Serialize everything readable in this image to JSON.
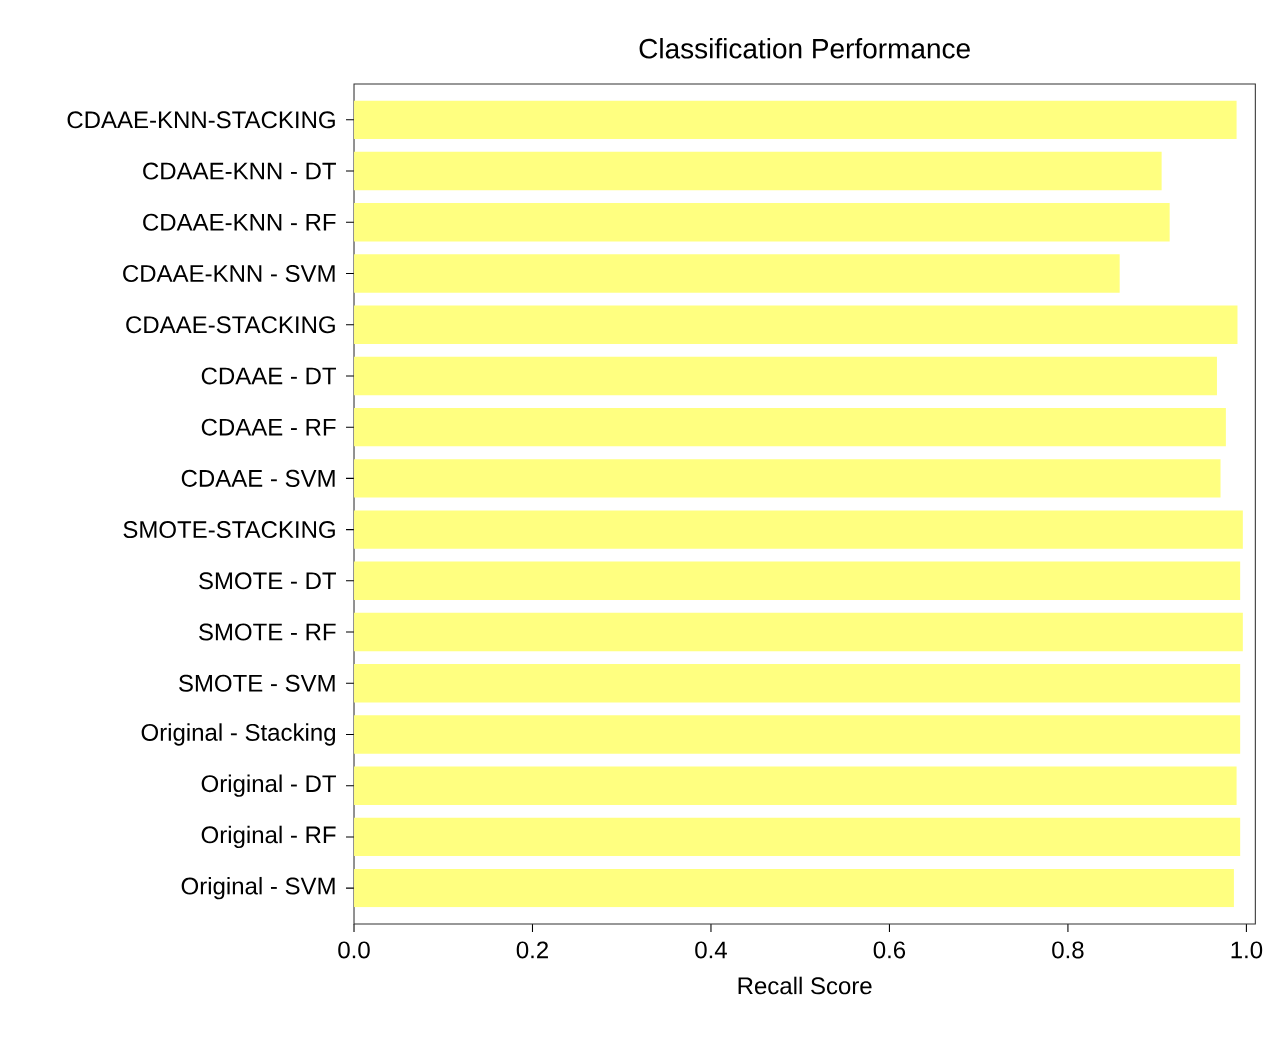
{
  "chart_data": {
    "type": "bar",
    "orientation": "horizontal",
    "title": "Classification Performance",
    "xlabel": "Recall Score",
    "categories": [
      "CDAAE-KNN-STACKING",
      "CDAAE-KNN - DT",
      "CDAAE-KNN - RF",
      "CDAAE-KNN - SVM",
      "CDAAE-STACKING",
      "CDAAE - DT",
      "CDAAE - RF",
      "CDAAE - SVM",
      "SMOTE-STACKING",
      "SMOTE - DT",
      "SMOTE - RF",
      "SMOTE - SVM",
      "Original - Stacking",
      "Original - DT",
      "Original - RF",
      "Original - SVM"
    ],
    "values": [
      0.989,
      0.905,
      0.914,
      0.858,
      0.99,
      0.967,
      0.977,
      0.971,
      0.996,
      0.993,
      0.996,
      0.993,
      0.993,
      0.989,
      0.993,
      0.986
    ],
    "color": "#ffff80",
    "xlim": [
      0,
      1.01
    ],
    "xticks": [
      {
        "value": 0,
        "label": "0.0"
      },
      {
        "value": 0.2,
        "label": "0.2"
      },
      {
        "value": 0.4,
        "label": "0.4"
      },
      {
        "value": 0.6,
        "label": "0.6"
      },
      {
        "value": 0.8,
        "label": "0.8"
      },
      {
        "value": 1,
        "label": "1.0"
      }
    ],
    "grid": false
  }
}
